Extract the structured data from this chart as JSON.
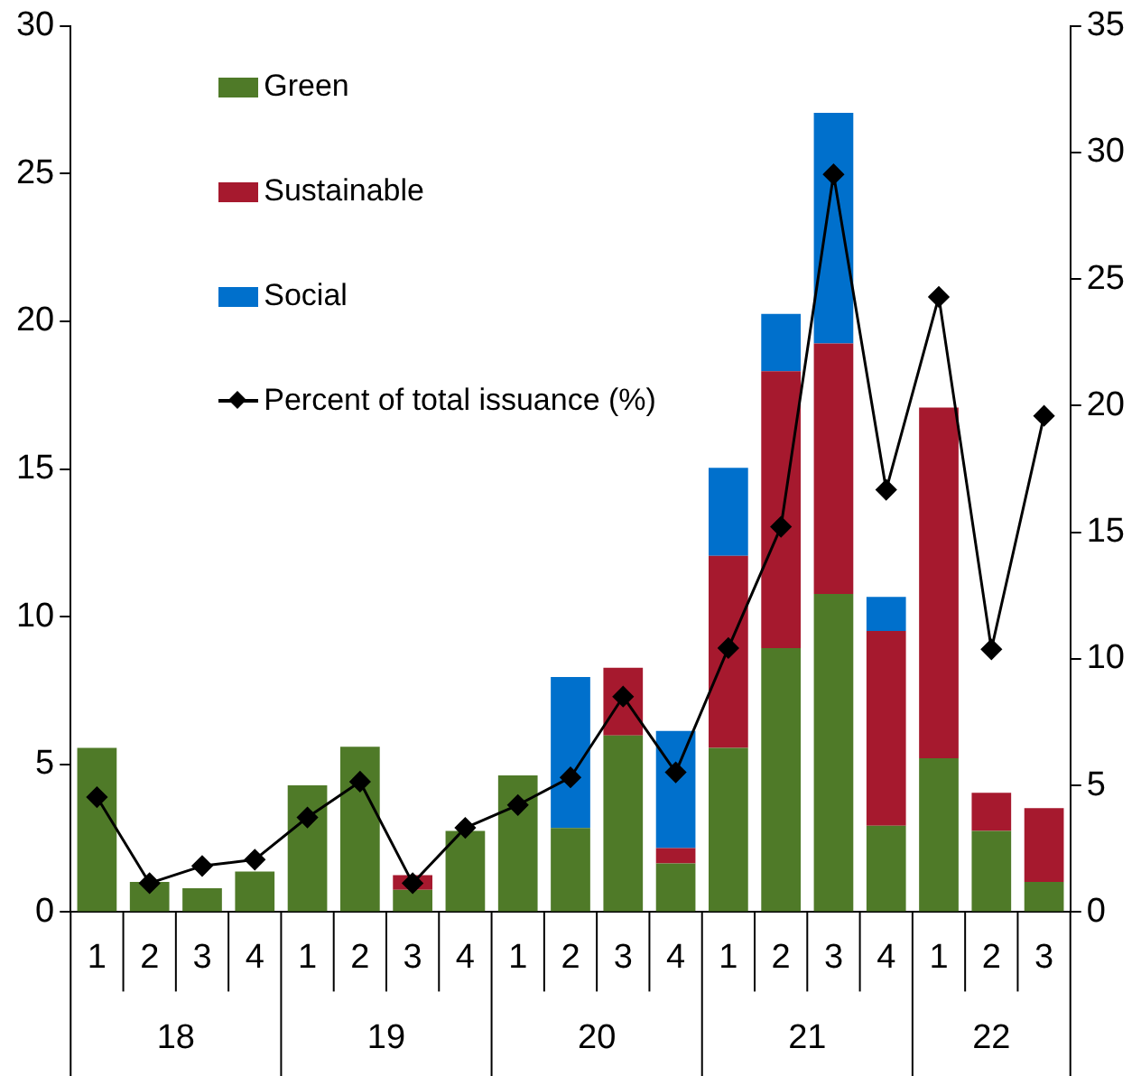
{
  "chart_data": {
    "type": "bar",
    "stacked": true,
    "categories": [
      "1",
      "2",
      "3",
      "4",
      "1",
      "2",
      "3",
      "4",
      "1",
      "2",
      "3",
      "4",
      "1",
      "2",
      "3",
      "4",
      "1",
      "2",
      "3"
    ],
    "series": [
      {
        "name": "Green",
        "color": "#4f7a28",
        "values": [
          5.56,
          1.02,
          0.81,
          1.37,
          4.29,
          5.6,
          0.75,
          2.75,
          4.63,
          2.85,
          5.98,
          1.65,
          5.56,
          8.94,
          10.77,
          2.92,
          5.21,
          2.75,
          1.02
        ]
      },
      {
        "name": "Sustainable",
        "color": "#a6192e",
        "values": [
          0,
          0,
          0,
          0,
          0,
          0,
          0.5,
          0,
          0,
          0,
          2.29,
          0.52,
          6.5,
          9.37,
          8.48,
          6.6,
          11.87,
          1.29,
          2.5
        ]
      },
      {
        "name": "Social",
        "color": "#0070cc",
        "values": [
          0,
          0,
          0,
          0,
          0,
          0,
          0,
          0,
          0,
          5.11,
          0,
          3.96,
          2.98,
          1.94,
          7.81,
          1.15,
          0,
          0,
          0
        ]
      },
      {
        "name": "Percent of total issuance (%)",
        "type": "line",
        "axis": "y2",
        "color": "#000000",
        "values": [
          4.54,
          1.14,
          1.82,
          2.07,
          3.74,
          5.15,
          1.14,
          3.33,
          4.23,
          5.32,
          8.51,
          5.52,
          10.43,
          15.22,
          29.14,
          16.68,
          24.3,
          10.38,
          19.6
        ]
      }
    ],
    "ylim": [
      0,
      30
    ],
    "yticks": [
      0,
      5,
      10,
      15,
      20,
      25,
      30
    ],
    "y2lim": [
      0,
      35
    ],
    "y2ticks": [
      0,
      5,
      10,
      15,
      20,
      25,
      30,
      35
    ],
    "marker": "diamond",
    "grid": false,
    "legend": "top left",
    "annotations": [
      "18",
      "19",
      "20",
      "21",
      "22"
    ]
  }
}
